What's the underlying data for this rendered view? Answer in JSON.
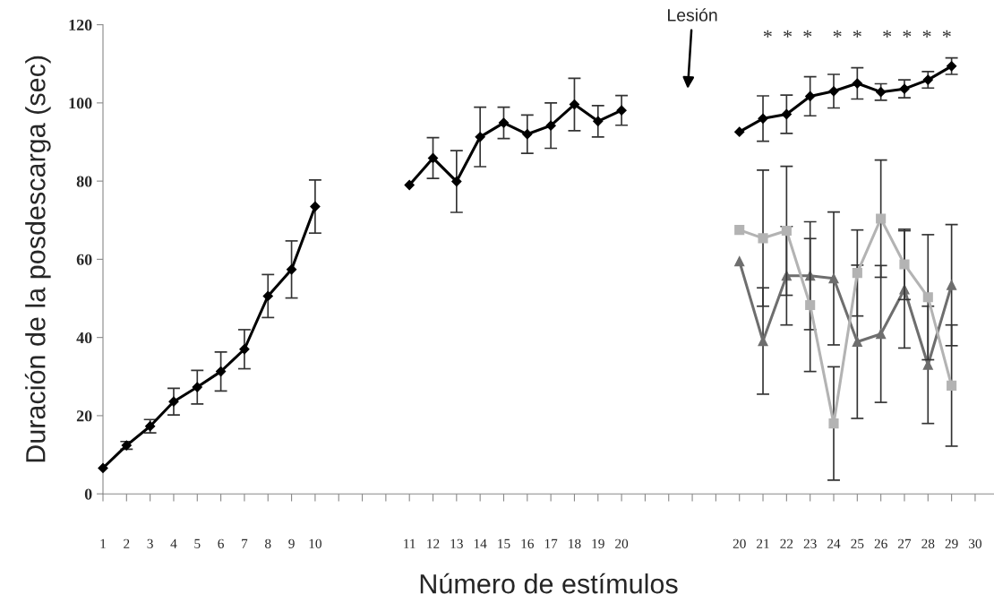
{
  "chart_data": {
    "type": "line",
    "xlabel": "Número de estímulos",
    "ylabel": "Duración de la posdescarga (sec)",
    "categories": [
      "1",
      "2",
      "3",
      "4",
      "5",
      "6",
      "7",
      "8",
      "9",
      "10",
      null,
      null,
      null,
      "11",
      "12",
      "13",
      "14",
      "15",
      "16",
      "17",
      "18",
      "19",
      "20",
      null,
      null,
      null,
      null,
      "20",
      "21",
      "22",
      "23",
      "24",
      "25",
      "26",
      "27",
      "28",
      "29",
      "30"
    ],
    "ylim": [
      0,
      120
    ],
    "yticks": [
      0,
      20,
      40,
      60,
      80,
      100,
      120
    ],
    "grid": false,
    "legend": false,
    "line_style": "solid",
    "series": [
      {
        "color": "#000000",
        "marker": "diamond",
        "values": [
          6.6,
          12.4,
          17.3,
          23.6,
          27.3,
          31.3,
          37.0,
          50.6,
          57.4,
          73.5,
          null,
          null,
          null,
          79.0,
          85.9,
          79.9,
          91.3,
          94.9,
          92.0,
          94.2,
          99.6,
          95.3,
          98.1,
          null,
          null,
          null,
          null,
          92.6,
          96.0,
          97.1,
          101.7,
          103.0,
          105.0,
          102.8,
          103.6,
          105.9,
          109.4,
          null
        ],
        "errors": [
          null,
          1,
          1.7,
          3.4,
          4.3,
          5,
          5,
          5.5,
          7.3,
          6.8,
          null,
          null,
          null,
          null,
          5.2,
          7.9,
          7.6,
          4,
          4.9,
          5.8,
          6.7,
          4,
          3.8,
          null,
          null,
          null,
          null,
          null,
          5.8,
          4.9,
          5,
          4.3,
          4,
          2.1,
          2.3,
          2.1,
          2.1,
          null
        ]
      },
      {
        "color": "#b3b3b3",
        "marker": "square",
        "values": [
          null,
          null,
          null,
          null,
          null,
          null,
          null,
          null,
          null,
          null,
          null,
          null,
          null,
          null,
          null,
          null,
          null,
          null,
          null,
          null,
          null,
          null,
          null,
          null,
          null,
          null,
          null,
          67.5,
          65.4,
          67.3,
          48.3,
          18.0,
          56.5,
          70.4,
          58.7,
          50.3,
          27.7,
          null
        ],
        "errors": [
          null,
          null,
          null,
          null,
          null,
          null,
          null,
          null,
          null,
          null,
          null,
          null,
          null,
          null,
          null,
          null,
          null,
          null,
          null,
          null,
          null,
          null,
          null,
          null,
          null,
          null,
          null,
          null,
          17.4,
          16.5,
          17,
          14.5,
          11,
          15,
          9,
          16,
          15.5,
          null
        ]
      },
      {
        "color": "#6e6e6e",
        "marker": "triangle",
        "values": [
          null,
          null,
          null,
          null,
          null,
          null,
          null,
          null,
          null,
          null,
          null,
          null,
          null,
          null,
          null,
          null,
          null,
          null,
          null,
          null,
          null,
          null,
          null,
          null,
          null,
          null,
          null,
          59.5,
          39.1,
          55.8,
          55.8,
          55.1,
          38.9,
          40.9,
          52.3,
          33.0,
          53.4,
          null
        ],
        "errors": [
          null,
          null,
          null,
          null,
          null,
          null,
          null,
          null,
          null,
          null,
          null,
          null,
          null,
          null,
          null,
          null,
          null,
          null,
          null,
          null,
          null,
          null,
          null,
          null,
          null,
          null,
          null,
          null,
          13.6,
          12.6,
          13.8,
          17,
          19.6,
          17.5,
          15,
          15,
          15.5,
          null
        ]
      }
    ],
    "annotations": [
      "Lesión",
      "*  *  *    *  *    *  *  *  *"
    ]
  }
}
